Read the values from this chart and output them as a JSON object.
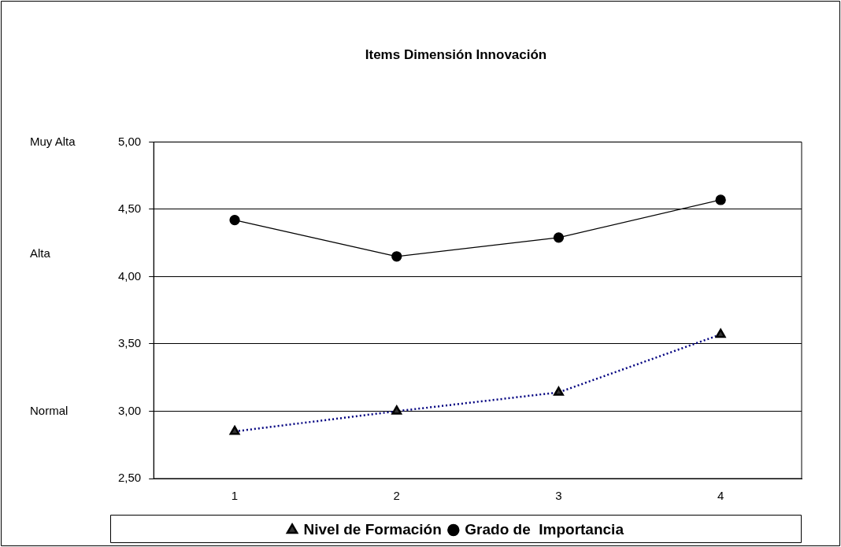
{
  "chart_data": {
    "type": "line",
    "title": "Items Dimensión Innovación",
    "categories": [
      "1",
      "2",
      "3",
      "4"
    ],
    "series": [
      {
        "name": "Nivel de Formación",
        "color": "#000080",
        "values": [
          2.85,
          3.0,
          3.14,
          3.57
        ],
        "marker": "triangle",
        "line_style": "dotted"
      },
      {
        "name": "Grado de  Importancia",
        "color": "#000000",
        "values": [
          4.42,
          4.15,
          4.29,
          4.57
        ],
        "marker": "circle",
        "line_style": "solid"
      }
    ],
    "ylim": [
      2.5,
      5
    ],
    "yticks": [
      {
        "value": 2.5,
        "label": "2,50"
      },
      {
        "value": 3,
        "label": "3,00"
      },
      {
        "value": 3.5,
        "label": "3,50"
      },
      {
        "value": 4,
        "label": "4,00"
      },
      {
        "value": 4.5,
        "label": "4,50"
      },
      {
        "value": 5,
        "label": "5,00"
      }
    ],
    "grid": "y",
    "legend": "bottom",
    "annotations": [
      "Muy Alta",
      "Alta",
      "Normal"
    ]
  }
}
